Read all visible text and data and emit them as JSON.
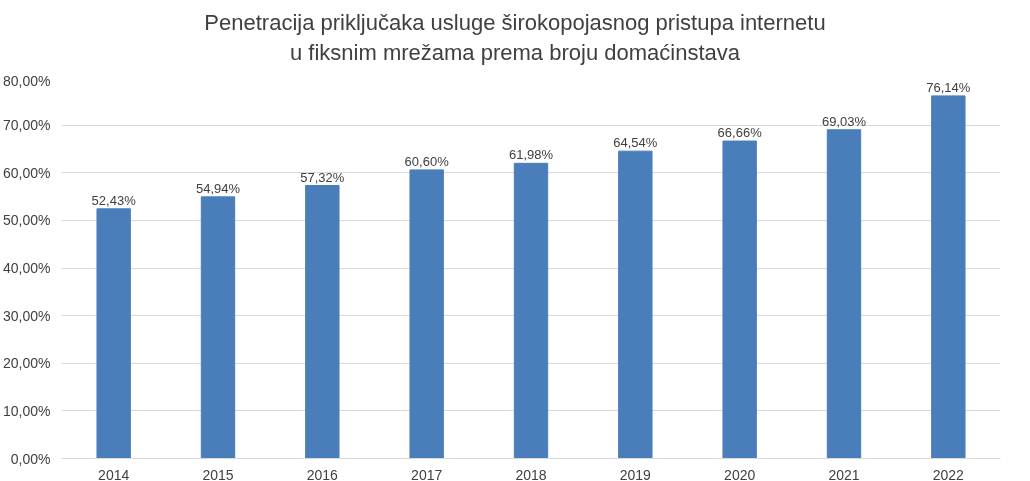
{
  "chart_data": {
    "type": "bar",
    "title": "Penetracija priključaka usluge širokopojasnog pristupa internetu\nu fiksnim mrežama prema broju domaćinstava",
    "categories": [
      "2014",
      "2015",
      "2016",
      "2017",
      "2018",
      "2019",
      "2020",
      "2021",
      "2022"
    ],
    "values": [
      52.43,
      54.94,
      57.32,
      60.6,
      61.98,
      64.54,
      66.66,
      69.03,
      76.14
    ],
    "value_labels": [
      "52,43%",
      "54,94%",
      "57,32%",
      "60,60%",
      "61,98%",
      "64,54%",
      "66,66%",
      "69,03%",
      "76,14%"
    ],
    "color": "#4a7ebb",
    "ylim": [
      0,
      80
    ],
    "yticks": [
      {
        "value": 0,
        "label": "0,00%"
      },
      {
        "value": 10,
        "label": "10,00%"
      },
      {
        "value": 20,
        "label": "20,00%"
      },
      {
        "value": 30,
        "label": "30,00%"
      },
      {
        "value": 40,
        "label": "40,00%"
      },
      {
        "value": 50,
        "label": "50,00%"
      },
      {
        "value": 60,
        "label": "60,00%"
      },
      {
        "value": 70,
        "label": "70,00%"
      },
      {
        "value": 80,
        "label": "80,00%"
      }
    ],
    "grid": "y"
  }
}
